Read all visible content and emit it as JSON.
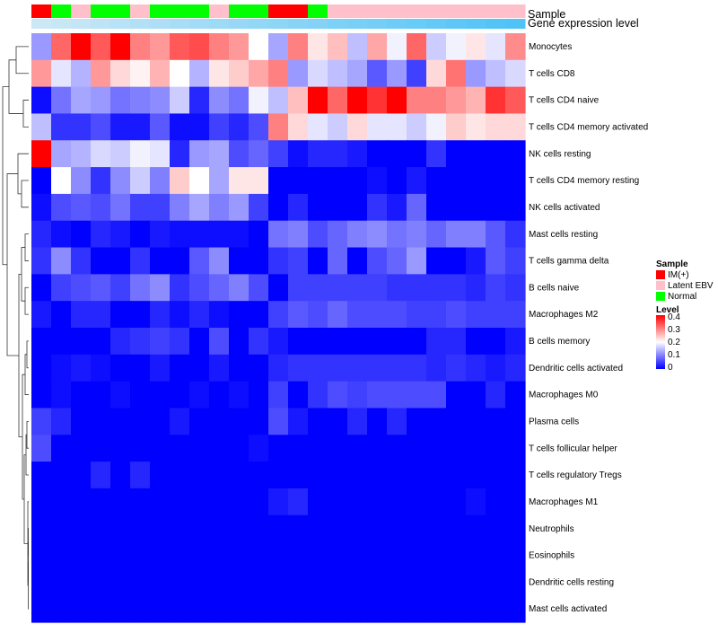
{
  "chart_data": {
    "type": "heatmap",
    "annotation_labels": {
      "sample": "Sample",
      "gene_expression": "Gene expression level"
    },
    "rows": [
      "Monocytes",
      "T cells CD8",
      "T cells CD4 naive",
      "T cells CD4 memory activated",
      "NK cells resting",
      "T cells CD4 memory resting",
      "NK cells activated",
      "Mast cells resting",
      "T cells gamma delta",
      "B cells naive",
      "Macrophages M2",
      "B cells memory",
      "Dendritic cells activated",
      "Macrophages M0",
      "Plasma cells",
      "T cells follicular helper",
      "T cells regulatory  Tregs",
      "Macrophages M1",
      "Neutrophils",
      "Eosinophils",
      "Dendritic cells resting",
      "Mast cells activated"
    ],
    "column_sample_groups": [
      "IM(+)",
      "Normal",
      "Latent EBV",
      "Normal",
      "Normal",
      "Latent EBV",
      "Normal",
      "Normal",
      "Normal",
      "Latent EBV",
      "Normal",
      "Normal",
      "IM(+)",
      "IM(+)",
      "Normal",
      "Latent EBV",
      "Latent EBV",
      "Latent EBV",
      "Latent EBV",
      "Latent EBV",
      "Latent EBV",
      "Latent EBV",
      "Latent EBV",
      "Latent EBV",
      "Latent EBV"
    ],
    "gene_expression_level": [
      0.0,
      0.04,
      0.08,
      0.13,
      0.17,
      0.21,
      0.25,
      0.29,
      0.33,
      0.38,
      0.42,
      0.46,
      0.5,
      0.54,
      0.58,
      0.63,
      0.67,
      0.71,
      0.75,
      0.79,
      0.83,
      0.88,
      0.92,
      0.96,
      1.0
    ],
    "values": [
      [
        0.12,
        0.32,
        0.4,
        0.33,
        0.4,
        0.3,
        0.28,
        0.33,
        0.34,
        0.3,
        0.28,
        0.2,
        0.13,
        0.3,
        0.22,
        0.25,
        0.15,
        0.27,
        0.19,
        0.32,
        0.16,
        0.19,
        0.22,
        0.18,
        0.29
      ],
      [
        0.28,
        0.18,
        0.14,
        0.28,
        0.23,
        0.21,
        0.26,
        0.2,
        0.14,
        0.22,
        0.24,
        0.27,
        0.3,
        0.12,
        0.17,
        0.15,
        0.13,
        0.07,
        0.12,
        0.05,
        0.23,
        0.31,
        0.12,
        0.15,
        0.17
      ],
      [
        0.01,
        0.09,
        0.13,
        0.12,
        0.09,
        0.1,
        0.11,
        0.16,
        0.03,
        0.11,
        0.09,
        0.19,
        0.15,
        0.25,
        0.4,
        0.32,
        0.4,
        0.36,
        0.4,
        0.3,
        0.3,
        0.28,
        0.26,
        0.36,
        0.33
      ],
      [
        0.15,
        0.04,
        0.04,
        0.06,
        0.02,
        0.02,
        0.07,
        0.01,
        0.01,
        0.05,
        0.03,
        0.06,
        0.3,
        0.23,
        0.18,
        0.16,
        0.23,
        0.18,
        0.18,
        0.16,
        0.19,
        0.24,
        0.22,
        0.23,
        0.23
      ],
      [
        0.4,
        0.13,
        0.14,
        0.17,
        0.16,
        0.19,
        0.18,
        0.03,
        0.12,
        0.13,
        0.06,
        0.08,
        0.05,
        0.01,
        0.03,
        0.03,
        0.02,
        0.0,
        0.0,
        0.0,
        0.04,
        0.0,
        0.0,
        0.0,
        0.0
      ],
      [
        0.0,
        0.2,
        0.11,
        0.04,
        0.11,
        0.16,
        0.1,
        0.24,
        0.2,
        0.13,
        0.22,
        0.22,
        0.0,
        0.0,
        0.0,
        0.0,
        0.0,
        0.01,
        0.0,
        0.02,
        0.0,
        0.0,
        0.0,
        0.0,
        0.0
      ],
      [
        0.01,
        0.06,
        0.07,
        0.06,
        0.09,
        0.05,
        0.05,
        0.1,
        0.13,
        0.1,
        0.12,
        0.05,
        0.0,
        0.03,
        0.0,
        0.0,
        0.0,
        0.04,
        0.02,
        0.08,
        0.0,
        0.0,
        0.0,
        0.0,
        0.0
      ],
      [
        0.03,
        0.01,
        0.0,
        0.03,
        0.02,
        0.0,
        0.02,
        0.01,
        0.01,
        0.01,
        0.01,
        0.0,
        0.09,
        0.1,
        0.06,
        0.08,
        0.1,
        0.11,
        0.09,
        0.1,
        0.08,
        0.1,
        0.1,
        0.07,
        0.04
      ],
      [
        0.04,
        0.11,
        0.04,
        0.0,
        0.0,
        0.04,
        0.0,
        0.0,
        0.07,
        0.11,
        0.0,
        0.0,
        0.04,
        0.05,
        0.0,
        0.08,
        0.0,
        0.06,
        0.08,
        0.12,
        0.0,
        0.0,
        0.02,
        0.07,
        0.05
      ],
      [
        0.0,
        0.05,
        0.06,
        0.07,
        0.05,
        0.09,
        0.11,
        0.04,
        0.06,
        0.08,
        0.1,
        0.06,
        0.0,
        0.05,
        0.05,
        0.05,
        0.05,
        0.05,
        0.04,
        0.04,
        0.04,
        0.04,
        0.03,
        0.05,
        0.04
      ],
      [
        0.02,
        0.0,
        0.03,
        0.03,
        0.0,
        0.0,
        0.03,
        0.01,
        0.03,
        0.01,
        0.0,
        0.0,
        0.05,
        0.07,
        0.06,
        0.08,
        0.06,
        0.06,
        0.06,
        0.05,
        0.05,
        0.06,
        0.05,
        0.05,
        0.05
      ],
      [
        0.0,
        0.0,
        0.0,
        0.0,
        0.03,
        0.04,
        0.05,
        0.04,
        0.0,
        0.06,
        0.0,
        0.04,
        0.02,
        0.0,
        0.0,
        0.0,
        0.0,
        0.0,
        0.0,
        0.0,
        0.03,
        0.03,
        0.0,
        0.0,
        0.02
      ],
      [
        0.0,
        0.01,
        0.02,
        0.01,
        0.0,
        0.0,
        0.02,
        0.0,
        0.0,
        0.02,
        0.0,
        0.0,
        0.03,
        0.04,
        0.04,
        0.04,
        0.04,
        0.04,
        0.04,
        0.04,
        0.03,
        0.04,
        0.03,
        0.02,
        0.03
      ],
      [
        0.0,
        0.01,
        0.0,
        0.0,
        0.01,
        0.0,
        0.0,
        0.0,
        0.01,
        0.0,
        0.01,
        0.0,
        0.05,
        0.0,
        0.04,
        0.06,
        0.05,
        0.06,
        0.06,
        0.06,
        0.06,
        0.0,
        0.0,
        0.03,
        0.0
      ],
      [
        0.05,
        0.03,
        0.0,
        0.0,
        0.0,
        0.0,
        0.0,
        0.02,
        0.0,
        0.0,
        0.0,
        0.0,
        0.06,
        0.02,
        0.0,
        0.0,
        0.03,
        0.0,
        0.03,
        0.0,
        0.0,
        0.0,
        0.0,
        0.0,
        0.0
      ],
      [
        0.06,
        0.0,
        0.0,
        0.0,
        0.0,
        0.0,
        0.0,
        0.0,
        0.0,
        0.0,
        0.0,
        0.01,
        0.0,
        0.0,
        0.0,
        0.0,
        0.0,
        0.0,
        0.0,
        0.0,
        0.0,
        0.0,
        0.0,
        0.0,
        0.0
      ],
      [
        0.0,
        0.0,
        0.0,
        0.03,
        0.0,
        0.03,
        0.0,
        0.0,
        0.0,
        0.0,
        0.0,
        0.0,
        0.0,
        0.0,
        0.0,
        0.0,
        0.0,
        0.0,
        0.0,
        0.0,
        0.0,
        0.0,
        0.0,
        0.0,
        0.0
      ],
      [
        0.0,
        0.0,
        0.0,
        0.0,
        0.0,
        0.0,
        0.0,
        0.0,
        0.0,
        0.0,
        0.0,
        0.0,
        0.02,
        0.03,
        0.0,
        0.0,
        0.0,
        0.0,
        0.0,
        0.0,
        0.0,
        0.0,
        0.01,
        0.0,
        0.0
      ],
      [
        0.0,
        0.0,
        0.0,
        0.0,
        0.0,
        0.0,
        0.0,
        0.0,
        0.0,
        0.0,
        0.0,
        0.0,
        0.0,
        0.0,
        0.0,
        0.0,
        0.0,
        0.0,
        0.0,
        0.0,
        0.0,
        0.0,
        0.0,
        0.0,
        0.0
      ],
      [
        0.0,
        0.0,
        0.0,
        0.0,
        0.0,
        0.0,
        0.0,
        0.0,
        0.0,
        0.0,
        0.0,
        0.0,
        0.0,
        0.0,
        0.0,
        0.0,
        0.0,
        0.0,
        0.0,
        0.0,
        0.0,
        0.0,
        0.0,
        0.0,
        0.0
      ],
      [
        0.0,
        0.0,
        0.0,
        0.0,
        0.0,
        0.0,
        0.0,
        0.0,
        0.0,
        0.0,
        0.0,
        0.0,
        0.0,
        0.0,
        0.0,
        0.0,
        0.0,
        0.0,
        0.0,
        0.0,
        0.0,
        0.0,
        0.0,
        0.0,
        0.0
      ],
      [
        0.0,
        0.0,
        0.0,
        0.0,
        0.0,
        0.0,
        0.0,
        0.0,
        0.0,
        0.0,
        0.0,
        0.0,
        0.0,
        0.0,
        0.0,
        0.0,
        0.0,
        0.0,
        0.0,
        0.0,
        0.0,
        0.0,
        0.0,
        0.0,
        0.0
      ]
    ],
    "color_scale": {
      "min": 0,
      "mid": 0.2,
      "max": 0.4,
      "low_color": "#0000ff",
      "mid_color": "#ffffff",
      "high_color": "#ff0000"
    },
    "gene_expression_colors": {
      "low": "#cde8f5",
      "high": "#4fc3f7"
    },
    "legend": {
      "sample_title": "Sample",
      "sample_entries": [
        {
          "label": "IM(+)",
          "color": "#ff0000"
        },
        {
          "label": "Latent EBV",
          "color": "#ffc0cb"
        },
        {
          "label": "Normal",
          "color": "#00ff00"
        }
      ],
      "level_title": "Level",
      "level_ticks": [
        "0.4",
        "0.3",
        "0.2",
        "0.1",
        "0"
      ],
      "placement": "right"
    },
    "row_dendrogram": true
  }
}
